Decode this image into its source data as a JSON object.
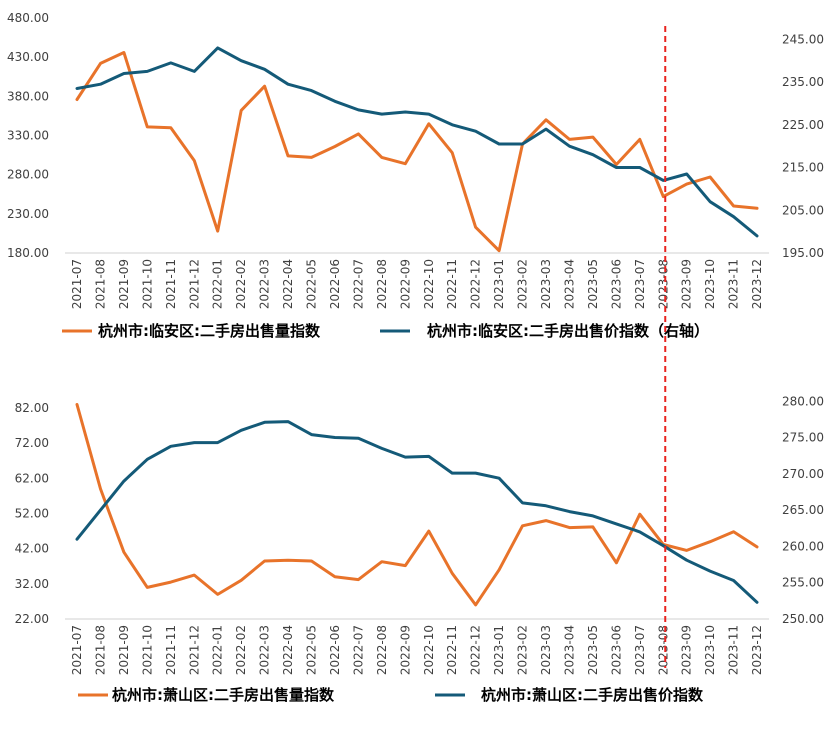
{
  "colors": {
    "sales": "#E8732A",
    "price": "#145A78",
    "marker": "#E8231F",
    "axis": "#D0D0D0"
  },
  "chart_data": [
    {
      "type": "line",
      "categories": [
        "2021-07",
        "2021-08",
        "2021-09",
        "2021-10",
        "2021-11",
        "2021-12",
        "2022-01",
        "2022-02",
        "2022-03",
        "2022-04",
        "2022-05",
        "2022-06",
        "2022-07",
        "2022-08",
        "2022-09",
        "2022-10",
        "2022-11",
        "2022-12",
        "2023-01",
        "2023-02",
        "2023-03",
        "2023-04",
        "2023-05",
        "2023-06",
        "2023-07",
        "2023-08",
        "2023-09",
        "2023-10",
        "2023-11",
        "2023-12"
      ],
      "y_left": {
        "min": 180,
        "max": 480,
        "ticks": [
          "480.00",
          "430.00",
          "380.00",
          "330.00",
          "280.00",
          "230.00",
          "180.00"
        ]
      },
      "y_right": {
        "min": 195,
        "max": 250,
        "ticks": [
          "245.00",
          "235.00",
          "225.00",
          "215.00",
          "205.00",
          "195.00"
        ]
      },
      "series": [
        {
          "name": "杭州市:临安区:二手房出售量指数",
          "axis": "left",
          "values": [
            376,
            422,
            436,
            341,
            340,
            298,
            208,
            362,
            393,
            304,
            302,
            316,
            332,
            302,
            294,
            345,
            308,
            213,
            183,
            319,
            350,
            325,
            328,
            293,
            325,
            252,
            268,
            277,
            240,
            237
          ]
        },
        {
          "name": "杭州市:临安区:二手房出售价指数（右轴）",
          "axis": "right",
          "values": [
            233.5,
            234.5,
            237,
            237.5,
            239.5,
            237.5,
            243,
            240,
            238,
            234.5,
            233,
            230.5,
            228.5,
            227.5,
            228,
            227.5,
            225,
            223.5,
            220.5,
            220.5,
            224,
            220,
            218,
            215,
            215,
            212,
            213.5,
            207,
            203.5,
            199
          ]
        }
      ]
    },
    {
      "type": "line",
      "categories": [
        "2021-07",
        "2021-08",
        "2021-09",
        "2021-10",
        "2021-11",
        "2021-12",
        "2022-01",
        "2022-02",
        "2022-03",
        "2022-04",
        "2022-05",
        "2022-06",
        "2022-07",
        "2022-08",
        "2022-09",
        "2022-10",
        "2022-11",
        "2022-12",
        "2023-01",
        "2023-02",
        "2023-03",
        "2023-04",
        "2023-05",
        "2023-06",
        "2023-07",
        "2023-08",
        "2023-09",
        "2023-10",
        "2023-11",
        "2023-12"
      ],
      "y_left": {
        "min": 22,
        "max": 86,
        "ticks": [
          "82.00",
          "72.00",
          "62.00",
          "52.00",
          "42.00",
          "32.00",
          "22.00"
        ]
      },
      "y_right": {
        "min": 250,
        "max": 281,
        "ticks": [
          "280.00",
          "275.00",
          "270.00",
          "265.00",
          "260.00",
          "255.00",
          "250.00"
        ]
      },
      "series": [
        {
          "name": "杭州市:萧山区:二手房出售量指数",
          "axis": "left",
          "values": [
            83,
            59,
            41,
            31,
            32.5,
            34.5,
            29,
            33,
            38.5,
            38.7,
            38.5,
            34,
            33.2,
            38.3,
            37.2,
            47,
            35,
            26,
            36,
            48.5,
            50,
            48,
            48.2,
            38,
            51.8,
            43.2,
            41.5,
            44,
            46.8,
            42.5
          ]
        },
        {
          "name": "杭州市:萧山区:二手房出售价指数",
          "axis": "right",
          "values": [
            261,
            265,
            269,
            272,
            273.8,
            274.3,
            274.3,
            276,
            277.1,
            277.2,
            275.4,
            275,
            274.9,
            273.5,
            272.3,
            272.4,
            270.1,
            270.1,
            269.4,
            266,
            265.6,
            264.8,
            264.2,
            263.1,
            262,
            260.1,
            258.1,
            256.6,
            255.3,
            252.3
          ]
        }
      ]
    }
  ]
}
